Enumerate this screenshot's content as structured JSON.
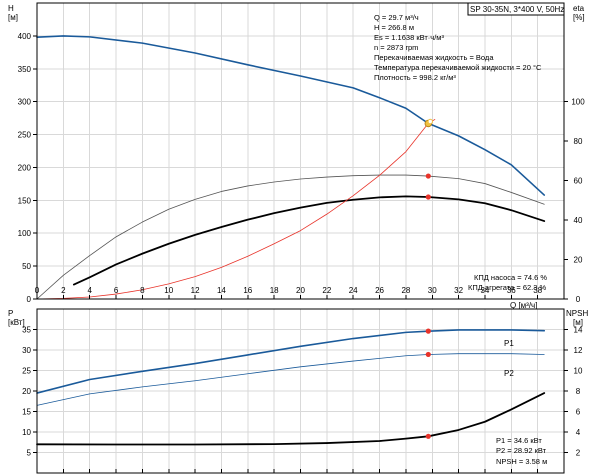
{
  "chart_data": [
    {
      "type": "line",
      "title": "SP 30-35N, 3*400 V, 50Hz",
      "xlabel": "Q [м³/ч]",
      "ylabel": "H [м]",
      "y2label": "eta [%]",
      "xlim": [
        0,
        40
      ],
      "ylim": [
        0,
        450
      ],
      "y2lim": [
        0,
        150
      ],
      "grid": true,
      "xticks": [
        0,
        2,
        4,
        6,
        8,
        10,
        12,
        14,
        16,
        18,
        20,
        22,
        24,
        26,
        28,
        30,
        32,
        34,
        36,
        38
      ],
      "yticks": [
        0,
        50,
        100,
        150,
        200,
        250,
        300,
        350,
        400
      ],
      "y2ticks": [
        0,
        20,
        40,
        60,
        80,
        100
      ],
      "series": [
        {
          "axis": "y",
          "color": "#1a5a9a",
          "width": 1.6,
          "points": [
            [
              0,
              398
            ],
            [
              2,
              400
            ],
            [
              4,
              398.5
            ],
            [
              8,
              389
            ],
            [
              12,
              374
            ],
            [
              16,
              356
            ],
            [
              20,
              339
            ],
            [
              24,
              321
            ],
            [
              26,
              306
            ],
            [
              28,
              290
            ],
            [
              29.7,
              267
            ],
            [
              32,
              248
            ],
            [
              34,
              227
            ],
            [
              36,
              204
            ],
            [
              38.5,
              158
            ]
          ]
        },
        {
          "axis": "y2",
          "color": "#555555",
          "width": 0.8,
          "points": [
            [
              0,
              0
            ],
            [
              2,
              12
            ],
            [
              4,
              22
            ],
            [
              6,
              31.5
            ],
            [
              8,
              39
            ],
            [
              10,
              45.5
            ],
            [
              12,
              50.5
            ],
            [
              14,
              54.5
            ],
            [
              16,
              57.3
            ],
            [
              18,
              59.3
            ],
            [
              20,
              60.8
            ],
            [
              22,
              61.8
            ],
            [
              24,
              62.5
            ],
            [
              26,
              62.8
            ],
            [
              28,
              62.8
            ],
            [
              29.7,
              62.3
            ],
            [
              32,
              61
            ],
            [
              34,
              58.5
            ],
            [
              36,
              54
            ],
            [
              38.5,
              48
            ]
          ]
        },
        {
          "axis": "y2",
          "color": "#000000",
          "width": 1.8,
          "points": [
            [
              2.8,
              7.3
            ],
            [
              4,
              11
            ],
            [
              6,
              17.5
            ],
            [
              8,
              23
            ],
            [
              10,
              28
            ],
            [
              12,
              32.5
            ],
            [
              14,
              36.5
            ],
            [
              16,
              40.2
            ],
            [
              18,
              43.5
            ],
            [
              20,
              46.3
            ],
            [
              22,
              48.7
            ],
            [
              24,
              50.3
            ],
            [
              26,
              51.5
            ],
            [
              28,
              52
            ],
            [
              29.7,
              51.7
            ],
            [
              32,
              50.5
            ],
            [
              34,
              48.5
            ],
            [
              36,
              45
            ],
            [
              38.5,
              39.5
            ]
          ]
        },
        {
          "axis": "y",
          "color": "#e8332a",
          "width": 0.8,
          "points": [
            [
              0,
              0
            ],
            [
              2,
              1
            ],
            [
              4,
              3
            ],
            [
              6,
              7.5
            ],
            [
              8,
              14
            ],
            [
              10,
              23
            ],
            [
              12,
              34
            ],
            [
              14,
              48
            ],
            [
              16,
              65
            ],
            [
              18,
              84
            ],
            [
              20,
              104
            ],
            [
              22,
              129
            ],
            [
              24,
              157
            ],
            [
              26,
              188
            ],
            [
              28,
              224
            ],
            [
              29.7,
              267
            ],
            [
              30.2,
              273
            ]
          ]
        }
      ],
      "markers": [
        {
          "axis": "y2",
          "x": 29.7,
          "y": 62.3,
          "color": "#e8332a",
          "shape": "dot"
        },
        {
          "axis": "y2",
          "x": 29.7,
          "y": 51.7,
          "color": "#e8332a",
          "shape": "dot"
        },
        {
          "axis": "y",
          "x": 29.7,
          "y": 266.8,
          "color": "#f0c040",
          "shape": "ring"
        }
      ],
      "annotations": [
        "Q = 29.7 м³/ч",
        "H = 266.8 м",
        "Es = 1.1638 кВт·ч/м³",
        "n = 2873 rpm",
        "Перекачиваемая жидкость = Вода",
        "Температура перекачиваемой жидкости = 20 °C",
        "Плотность = 998.2 кг/м³"
      ],
      "efficiency_labels": [
        "КПД насоса = 74.6 %",
        "КПД агрегата = 62.3 %"
      ]
    },
    {
      "type": "line",
      "ylabel": "P [кВт]",
      "y2label": "NPSH [м]",
      "xlim": [
        0,
        40
      ],
      "ylim": [
        0,
        40
      ],
      "y2lim": [
        0,
        16
      ],
      "grid": true,
      "yticks": [
        5,
        10,
        15,
        20,
        25,
        30,
        35
      ],
      "y2ticks": [
        2,
        4,
        6,
        8,
        10,
        12,
        14
      ],
      "series": [
        {
          "axis": "y",
          "name": "P1",
          "color": "#1a5a9a",
          "width": 1.6,
          "points": [
            [
              0,
              19.5
            ],
            [
              4,
              22.8
            ],
            [
              8,
              24.8
            ],
            [
              12,
              26.7
            ],
            [
              16,
              28.8
            ],
            [
              20,
              30.9
            ],
            [
              24,
              32.8
            ],
            [
              28,
              34.3
            ],
            [
              29.7,
              34.6
            ],
            [
              32,
              34.9
            ],
            [
              36,
              34.9
            ],
            [
              38.5,
              34.7
            ]
          ]
        },
        {
          "axis": "y",
          "name": "P2",
          "color": "#1a5a9a",
          "width": 0.8,
          "points": [
            [
              0,
              16.5
            ],
            [
              4,
              19.3
            ],
            [
              8,
              21
            ],
            [
              12,
              22.5
            ],
            [
              16,
              24.2
            ],
            [
              20,
              25.9
            ],
            [
              24,
              27.3
            ],
            [
              28,
              28.6
            ],
            [
              29.7,
              28.9
            ],
            [
              32,
              29.1
            ],
            [
              36,
              29.1
            ],
            [
              38.5,
              28.9
            ]
          ]
        },
        {
          "axis": "y2",
          "color": "#000000",
          "width": 1.8,
          "points": [
            [
              0,
              2.8
            ],
            [
              6,
              2.78
            ],
            [
              12,
              2.78
            ],
            [
              18,
              2.82
            ],
            [
              22,
              2.92
            ],
            [
              26,
              3.12
            ],
            [
              28,
              3.35
            ],
            [
              29.7,
              3.58
            ],
            [
              32,
              4.2
            ],
            [
              34,
              5.0
            ],
            [
              36,
              6.2
            ],
            [
              38.5,
              7.8
            ]
          ]
        }
      ],
      "markers": [
        {
          "axis": "y",
          "x": 29.7,
          "y": 34.6,
          "color": "#e8332a",
          "shape": "dot"
        },
        {
          "axis": "y",
          "x": 29.7,
          "y": 28.92,
          "color": "#e8332a",
          "shape": "dot"
        },
        {
          "axis": "y2",
          "x": 29.7,
          "y": 3.58,
          "color": "#e8332a",
          "shape": "dot"
        }
      ],
      "annotations": [
        "P1 = 34.6 кВт",
        "P2 = 28.92 кВт",
        "NPSH = 3.58 м"
      ]
    }
  ]
}
